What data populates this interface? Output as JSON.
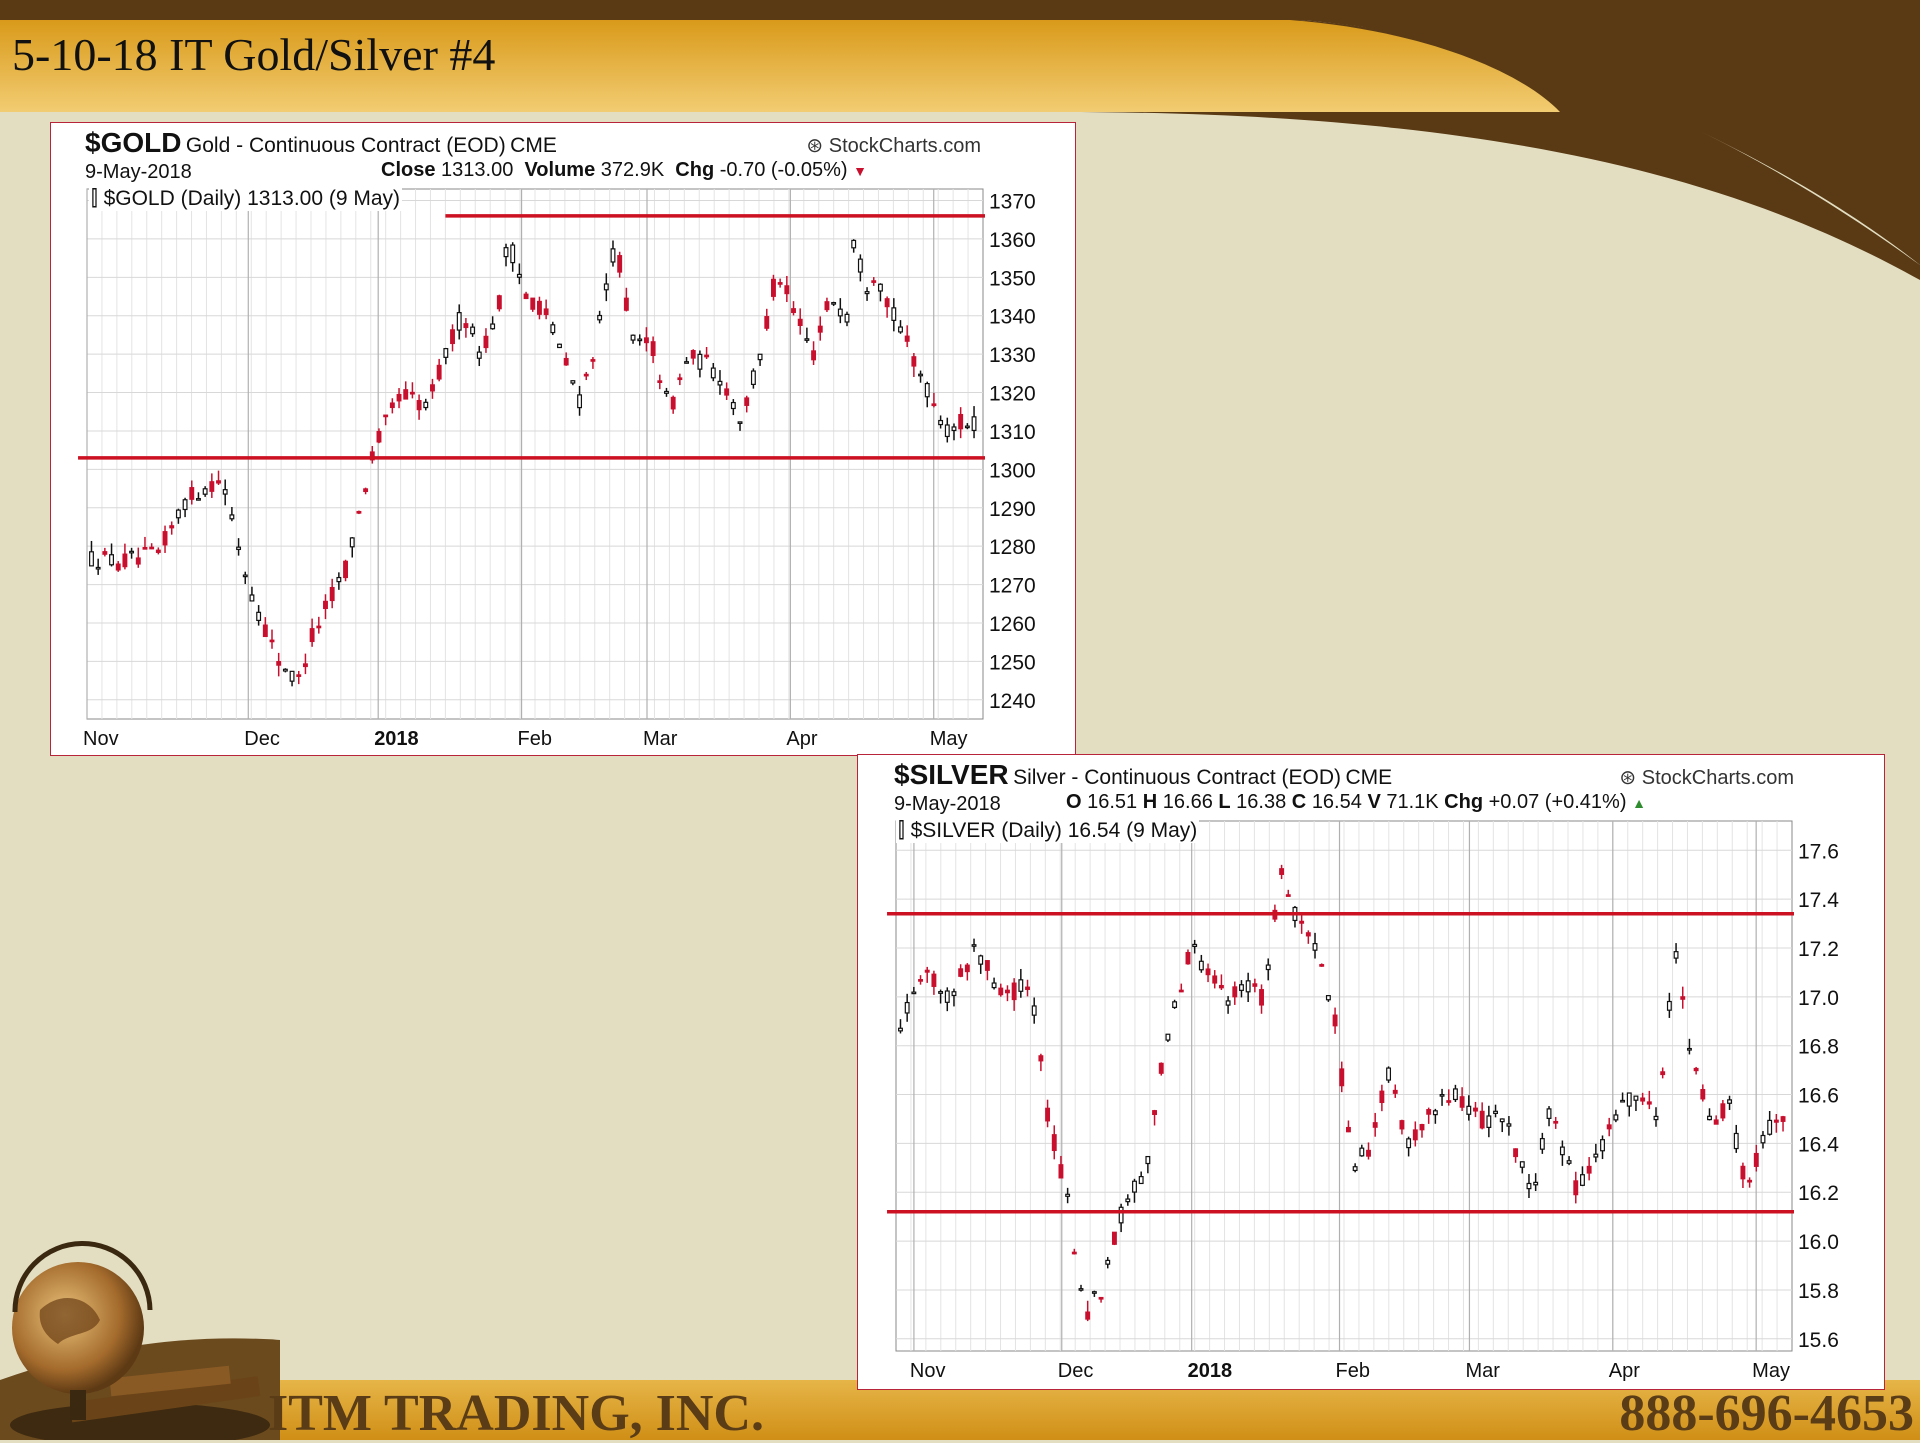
{
  "slide": {
    "title": "5-10-18 IT Gold/Silver #4",
    "company": "ITM TRADING, INC.",
    "phone": "888-696-4653",
    "colors": {
      "header_dark": "#5a3a14",
      "header_gold": "#e2a62a",
      "background": "#e3dec2",
      "trend_line": "#cc1122",
      "down_candle": "#c8102e"
    }
  },
  "chart_data": [
    {
      "type": "candlestick",
      "symbol": "$GOLD",
      "description": "Gold - Continuous Contract (EOD)",
      "exchange": "CME",
      "brand": "StockCharts.com",
      "date": "9-May-2018",
      "stats": {
        "close_label": "Close",
        "close": "1313.00",
        "volume_label": "Volume",
        "volume": "372.9K",
        "chg_label": "Chg",
        "chg": "-0.70 (-0.05%)",
        "direction": "down"
      },
      "subtitle": "$GOLD (Daily) 1313.00 (9 May)",
      "ylim": [
        1235,
        1373
      ],
      "yticks": [
        "1370",
        "1360",
        "1350",
        "1340",
        "1330",
        "1320",
        "1310",
        "1300",
        "1290",
        "1280",
        "1270",
        "1260",
        "1250",
        "1240"
      ],
      "xticks": [
        {
          "label": "Nov",
          "t": 0.0,
          "bold": false
        },
        {
          "label": "Dec",
          "t": 0.18,
          "bold": false
        },
        {
          "label": "2018",
          "t": 0.325,
          "bold": true
        },
        {
          "label": "Feb",
          "t": 0.485,
          "bold": false
        },
        {
          "label": "Mar",
          "t": 0.625,
          "bold": false
        },
        {
          "label": "Apr",
          "t": 0.785,
          "bold": false
        },
        {
          "label": "May",
          "t": 0.945,
          "bold": false
        }
      ],
      "trendlines": [
        {
          "y": 1366,
          "t_start": 0.4
        },
        {
          "y": 1303,
          "t_start": -0.01
        }
      ],
      "path": [
        [
          0,
          1277
        ],
        [
          0.04,
          1276
        ],
        [
          0.08,
          1278
        ],
        [
          0.11,
          1292
        ],
        [
          0.15,
          1298
        ],
        [
          0.18,
          1270
        ],
        [
          0.21,
          1252
        ],
        [
          0.235,
          1244
        ],
        [
          0.25,
          1256
        ],
        [
          0.29,
          1275
        ],
        [
          0.32,
          1305
        ],
        [
          0.35,
          1320
        ],
        [
          0.38,
          1316
        ],
        [
          0.4,
          1330
        ],
        [
          0.42,
          1341
        ],
        [
          0.44,
          1330
        ],
        [
          0.46,
          1343
        ],
        [
          0.47,
          1360
        ],
        [
          0.49,
          1345
        ],
        [
          0.51,
          1342
        ],
        [
          0.53,
          1330
        ],
        [
          0.55,
          1318
        ],
        [
          0.57,
          1335
        ],
        [
          0.59,
          1360
        ],
        [
          0.61,
          1332
        ],
        [
          0.63,
          1333
        ],
        [
          0.65,
          1315
        ],
        [
          0.67,
          1329
        ],
        [
          0.69,
          1328
        ],
        [
          0.71,
          1323
        ],
        [
          0.73,
          1313
        ],
        [
          0.75,
          1328
        ],
        [
          0.77,
          1352
        ],
        [
          0.79,
          1340
        ],
        [
          0.81,
          1330
        ],
        [
          0.83,
          1345
        ],
        [
          0.85,
          1340
        ],
        [
          0.855,
          1360
        ],
        [
          0.87,
          1348
        ],
        [
          0.88,
          1352
        ],
        [
          0.9,
          1340
        ],
        [
          0.92,
          1330
        ],
        [
          0.94,
          1320
        ],
        [
          0.96,
          1310
        ],
        [
          0.975,
          1312
        ],
        [
          1.0,
          1313
        ]
      ],
      "candles": 133
    },
    {
      "type": "candlestick",
      "symbol": "$SILVER",
      "description": "Silver - Continuous Contract (EOD)",
      "exchange": "CME",
      "brand": "StockCharts.com",
      "date": "9-May-2018",
      "stats": {
        "o_label": "O",
        "open": "16.51",
        "h_label": "H",
        "high": "16.66",
        "l_label": "L",
        "low": "16.38",
        "c_label": "C",
        "close": "16.54",
        "v_label": "V",
        "volume": "71.1K",
        "chg_label": "Chg",
        "chg": "+0.07 (+0.41%)",
        "direction": "up"
      },
      "subtitle": "$SILVER (Daily) 16.54 (9 May)",
      "ylim": [
        15.55,
        17.72
      ],
      "yticks": [
        "17.6",
        "17.4",
        "17.2",
        "17.0",
        "16.8",
        "16.6",
        "16.4",
        "16.2",
        "16.0",
        "15.8",
        "15.6"
      ],
      "xticks": [
        {
          "label": "Nov",
          "t": 0.02,
          "bold": false
        },
        {
          "label": "Dec",
          "t": 0.185,
          "bold": false
        },
        {
          "label": "2018",
          "t": 0.33,
          "bold": true
        },
        {
          "label": "Feb",
          "t": 0.495,
          "bold": false
        },
        {
          "label": "Mar",
          "t": 0.64,
          "bold": false
        },
        {
          "label": "Apr",
          "t": 0.8,
          "bold": false
        },
        {
          "label": "May",
          "t": 0.96,
          "bold": false
        }
      ],
      "trendlines": [
        {
          "y": 17.34,
          "t_start": -0.01
        },
        {
          "y": 16.12,
          "t_start": -0.01
        }
      ],
      "path": [
        [
          0,
          16.85
        ],
        [
          0.03,
          17.1
        ],
        [
          0.06,
          17.0
        ],
        [
          0.09,
          17.2
        ],
        [
          0.12,
          17.0
        ],
        [
          0.15,
          17.05
        ],
        [
          0.17,
          16.5
        ],
        [
          0.19,
          16.2
        ],
        [
          0.21,
          15.7
        ],
        [
          0.23,
          15.8
        ],
        [
          0.25,
          16.1
        ],
        [
          0.28,
          16.3
        ],
        [
          0.3,
          16.8
        ],
        [
          0.33,
          17.2
        ],
        [
          0.35,
          17.1
        ],
        [
          0.37,
          17.0
        ],
        [
          0.39,
          17.05
        ],
        [
          0.41,
          17.0
        ],
        [
          0.43,
          17.5
        ],
        [
          0.45,
          17.3
        ],
        [
          0.47,
          17.2
        ],
        [
          0.49,
          16.9
        ],
        [
          0.51,
          16.3
        ],
        [
          0.53,
          16.4
        ],
        [
          0.55,
          16.7
        ],
        [
          0.57,
          16.4
        ],
        [
          0.59,
          16.5
        ],
        [
          0.62,
          16.6
        ],
        [
          0.65,
          16.5
        ],
        [
          0.68,
          16.5
        ],
        [
          0.71,
          16.2
        ],
        [
          0.73,
          16.55
        ],
        [
          0.76,
          16.2
        ],
        [
          0.79,
          16.4
        ],
        [
          0.82,
          16.6
        ],
        [
          0.85,
          16.5
        ],
        [
          0.87,
          17.2
        ],
        [
          0.89,
          16.7
        ],
        [
          0.91,
          16.5
        ],
        [
          0.93,
          16.55
        ],
        [
          0.95,
          16.2
        ],
        [
          0.97,
          16.45
        ],
        [
          1.0,
          16.54
        ]
      ],
      "candles": 133
    }
  ]
}
